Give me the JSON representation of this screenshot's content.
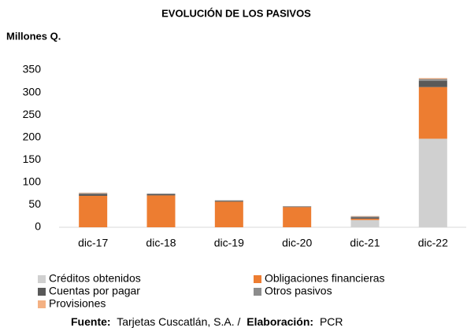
{
  "chart_data": {
    "type": "stacked_bar",
    "title": "EVOLUCIÓN DE LOS PASIVOS",
    "y_label": "Millones Q.",
    "categories": [
      "dic-17",
      "dic-18",
      "dic-19",
      "dic-20",
      "dic-21",
      "dic-22"
    ],
    "series": [
      {
        "name": "Créditos obtenidos",
        "color": "#d0d0d0",
        "values": [
          0,
          0,
          0,
          0,
          16,
          197
        ]
      },
      {
        "name": "Obligaciones financieras",
        "color": "#ed7d31",
        "values": [
          70,
          71,
          57,
          45,
          3,
          115
        ]
      },
      {
        "name": "Cuentas por pagar",
        "color": "#595959",
        "values": [
          4,
          3,
          2,
          1,
          3,
          14
        ]
      },
      {
        "name": "Otros pasivos",
        "color": "#8c8c8c",
        "values": [
          2,
          1,
          1,
          1,
          2,
          4
        ]
      },
      {
        "name": "Provisiones",
        "color": "#f4b183",
        "values": [
          1,
          0,
          0,
          0,
          1,
          2
        ]
      }
    ],
    "ylim": [
      0,
      350
    ],
    "yticks": [
      0,
      50,
      100,
      150,
      200,
      250,
      300,
      350
    ],
    "grid": false,
    "source": {
      "label1": "Fuente:",
      "text1": "Tarjetas Cuscatlán, S.A. /",
      "label2": "Elaboración:",
      "text2": "PCR"
    }
  }
}
